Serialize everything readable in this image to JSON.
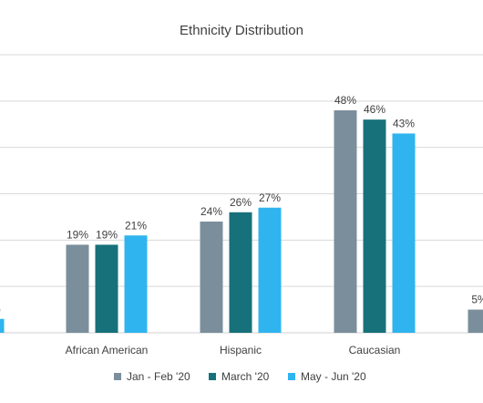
{
  "chart_data": {
    "type": "bar",
    "title": "Ethnicity Distribution",
    "xlabel": "",
    "ylabel": "",
    "ylim": [
      0,
      60
    ],
    "grid": true,
    "legend_position": "bottom",
    "categories": [
      "",
      "African American",
      "Hispanic",
      "Caucasian",
      ""
    ],
    "series": [
      {
        "name": "Jan - Feb '20",
        "color": "#7a8f9b",
        "values": [
          null,
          19,
          24,
          48,
          5
        ]
      },
      {
        "name": "March '20",
        "color": "#17717a",
        "values": [
          null,
          19,
          26,
          46,
          null
        ]
      },
      {
        "name": "May - Jun '20",
        "color": "#2fb4ef",
        "values": [
          3,
          21,
          27,
          43,
          null
        ]
      }
    ],
    "data_labels": [
      [
        null,
        "19%",
        "24%",
        "48%",
        "5%"
      ],
      [
        null,
        "19%",
        "26%",
        "46%",
        null
      ],
      [
        "3%",
        "21%",
        "27%",
        "43%",
        null
      ]
    ]
  }
}
